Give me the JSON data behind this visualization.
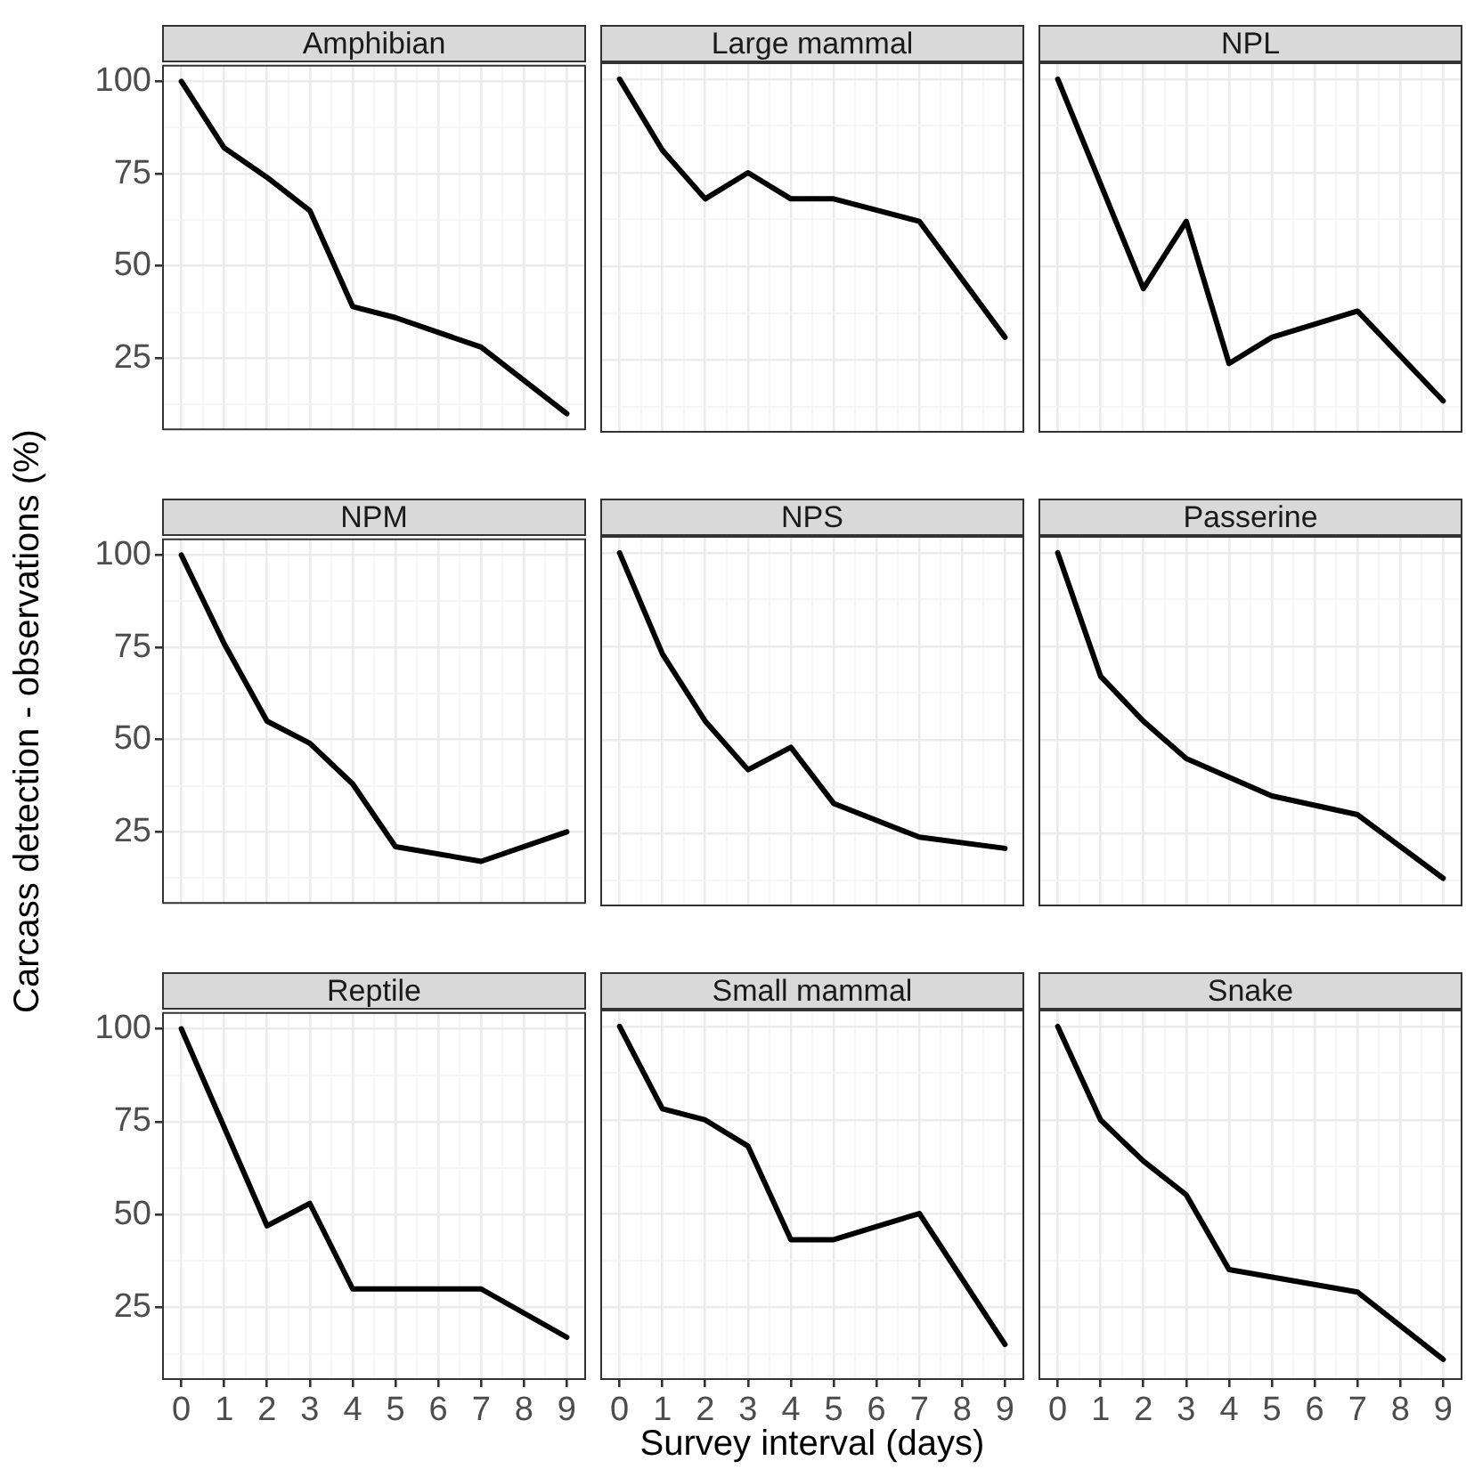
{
  "chart_data": [
    {
      "type": "line",
      "title": "Amphibian",
      "x": [
        0,
        1,
        2,
        3,
        4,
        5,
        7,
        9
      ],
      "series": [
        {
          "color": "#000000",
          "values": [
            100,
            82,
            74,
            65,
            39,
            36,
            28,
            10
          ]
        }
      ],
      "xlim": [
        -0.45,
        9.45
      ],
      "ylim": [
        5.5,
        104.5
      ],
      "xticks": [
        0,
        {
          "value": 0.5,
          "label": null
        },
        1,
        {
          "value": 1.5,
          "label": null
        },
        2,
        {
          "value": 2.5,
          "label": null
        },
        3,
        {
          "value": 3.5,
          "label": null
        },
        4,
        {
          "value": 4.5,
          "label": null
        },
        5,
        {
          "value": 5.5,
          "label": null
        },
        6,
        {
          "value": 6.5,
          "label": null
        },
        7,
        {
          "value": 7.5,
          "label": null
        },
        8,
        {
          "value": 8.5,
          "label": null
        },
        9
      ],
      "yticks": [
        {
          "value": 12.5,
          "label": null
        },
        25,
        {
          "value": 37.5,
          "label": null
        },
        50,
        {
          "value": 62.5,
          "label": null
        },
        75,
        {
          "value": 87.5,
          "label": null
        },
        100
      ],
      "grid": true,
      "legend": false,
      "tick_labels": "y"
    },
    {
      "type": "line",
      "title": "Large mammal",
      "x": [
        0,
        1,
        2,
        3,
        4,
        5,
        7,
        9
      ],
      "series": [
        {
          "color": "#000000",
          "values": [
            100,
            81,
            68,
            75,
            68,
            68,
            62,
            31
          ]
        }
      ],
      "xlim": [
        -0.45,
        9.45
      ],
      "ylim": [
        5.5,
        104.5
      ],
      "xticks": [
        0,
        {
          "value": 0.5,
          "label": null
        },
        1,
        {
          "value": 1.5,
          "label": null
        },
        2,
        {
          "value": 2.5,
          "label": null
        },
        3,
        {
          "value": 3.5,
          "label": null
        },
        4,
        {
          "value": 4.5,
          "label": null
        },
        5,
        {
          "value": 5.5,
          "label": null
        },
        6,
        {
          "value": 6.5,
          "label": null
        },
        7,
        {
          "value": 7.5,
          "label": null
        },
        8,
        {
          "value": 8.5,
          "label": null
        },
        9
      ],
      "yticks": [
        {
          "value": 12.5,
          "label": null
        },
        25,
        {
          "value": 37.5,
          "label": null
        },
        50,
        {
          "value": 62.5,
          "label": null
        },
        75,
        {
          "value": 87.5,
          "label": null
        },
        100
      ],
      "grid": true,
      "legend": false,
      "tick_labels": false
    },
    {
      "type": "line",
      "title": "NPL",
      "x": [
        0,
        2,
        3,
        4,
        5,
        7,
        9
      ],
      "series": [
        {
          "color": "#000000",
          "values": [
            100,
            44,
            62,
            24,
            31,
            38,
            14
          ]
        }
      ],
      "xlim": [
        -0.45,
        9.45
      ],
      "ylim": [
        5.5,
        104.5
      ],
      "xticks": [
        0,
        {
          "value": 0.5,
          "label": null
        },
        1,
        {
          "value": 1.5,
          "label": null
        },
        2,
        {
          "value": 2.5,
          "label": null
        },
        3,
        {
          "value": 3.5,
          "label": null
        },
        4,
        {
          "value": 4.5,
          "label": null
        },
        5,
        {
          "value": 5.5,
          "label": null
        },
        6,
        {
          "value": 6.5,
          "label": null
        },
        7,
        {
          "value": 7.5,
          "label": null
        },
        8,
        {
          "value": 8.5,
          "label": null
        },
        9
      ],
      "yticks": [
        {
          "value": 12.5,
          "label": null
        },
        25,
        {
          "value": 37.5,
          "label": null
        },
        50,
        {
          "value": 62.5,
          "label": null
        },
        75,
        {
          "value": 87.5,
          "label": null
        },
        100
      ],
      "grid": true,
      "legend": false,
      "tick_labels": false
    },
    {
      "type": "line",
      "title": "NPM",
      "ylabel": "Carcass detection - observations (%)",
      "x": [
        0,
        1,
        2,
        3,
        4,
        5,
        7,
        9
      ],
      "series": [
        {
          "color": "#000000",
          "values": [
            100,
            76,
            55,
            49,
            38,
            21,
            17,
            25
          ]
        }
      ],
      "xlim": [
        -0.45,
        9.45
      ],
      "ylim": [
        5.5,
        104.5
      ],
      "xticks": [
        0,
        {
          "value": 0.5,
          "label": null
        },
        1,
        {
          "value": 1.5,
          "label": null
        },
        2,
        {
          "value": 2.5,
          "label": null
        },
        3,
        {
          "value": 3.5,
          "label": null
        },
        4,
        {
          "value": 4.5,
          "label": null
        },
        5,
        {
          "value": 5.5,
          "label": null
        },
        6,
        {
          "value": 6.5,
          "label": null
        },
        7,
        {
          "value": 7.5,
          "label": null
        },
        8,
        {
          "value": 8.5,
          "label": null
        },
        9
      ],
      "yticks": [
        {
          "value": 12.5,
          "label": null
        },
        25,
        {
          "value": 37.5,
          "label": null
        },
        50,
        {
          "value": 62.5,
          "label": null
        },
        75,
        {
          "value": 87.5,
          "label": null
        },
        100
      ],
      "grid": true,
      "legend": false,
      "tick_labels": "y"
    },
    {
      "type": "line",
      "title": "NPS",
      "x": [
        0,
        1,
        2,
        3,
        4,
        5,
        7,
        9
      ],
      "series": [
        {
          "color": "#000000",
          "values": [
            100,
            73,
            55,
            42,
            48,
            33,
            24,
            21
          ]
        }
      ],
      "xlim": [
        -0.45,
        9.45
      ],
      "ylim": [
        5.5,
        104.5
      ],
      "xticks": [
        0,
        {
          "value": 0.5,
          "label": null
        },
        1,
        {
          "value": 1.5,
          "label": null
        },
        2,
        {
          "value": 2.5,
          "label": null
        },
        3,
        {
          "value": 3.5,
          "label": null
        },
        4,
        {
          "value": 4.5,
          "label": null
        },
        5,
        {
          "value": 5.5,
          "label": null
        },
        6,
        {
          "value": 6.5,
          "label": null
        },
        7,
        {
          "value": 7.5,
          "label": null
        },
        8,
        {
          "value": 8.5,
          "label": null
        },
        9
      ],
      "yticks": [
        {
          "value": 12.5,
          "label": null
        },
        25,
        {
          "value": 37.5,
          "label": null
        },
        50,
        {
          "value": 62.5,
          "label": null
        },
        75,
        {
          "value": 87.5,
          "label": null
        },
        100
      ],
      "grid": true,
      "legend": false,
      "tick_labels": false
    },
    {
      "type": "line",
      "title": "Passerine",
      "x": [
        0,
        1,
        2,
        3,
        5,
        7,
        9
      ],
      "series": [
        {
          "color": "#000000",
          "values": [
            100,
            67,
            55,
            45,
            35,
            30,
            13
          ]
        }
      ],
      "xlim": [
        -0.45,
        9.45
      ],
      "ylim": [
        5.5,
        104.5
      ],
      "xticks": [
        0,
        {
          "value": 0.5,
          "label": null
        },
        1,
        {
          "value": 1.5,
          "label": null
        },
        2,
        {
          "value": 2.5,
          "label": null
        },
        3,
        {
          "value": 3.5,
          "label": null
        },
        4,
        {
          "value": 4.5,
          "label": null
        },
        5,
        {
          "value": 5.5,
          "label": null
        },
        6,
        {
          "value": 6.5,
          "label": null
        },
        7,
        {
          "value": 7.5,
          "label": null
        },
        8,
        {
          "value": 8.5,
          "label": null
        },
        9
      ],
      "yticks": [
        {
          "value": 12.5,
          "label": null
        },
        25,
        {
          "value": 37.5,
          "label": null
        },
        50,
        {
          "value": 62.5,
          "label": null
        },
        75,
        {
          "value": 87.5,
          "label": null
        },
        100
      ],
      "grid": true,
      "legend": false,
      "tick_labels": false
    },
    {
      "type": "line",
      "title": "Reptile",
      "x": [
        0,
        2,
        3,
        4,
        5,
        7,
        9
      ],
      "series": [
        {
          "color": "#000000",
          "values": [
            100,
            47,
            53,
            30,
            30,
            30,
            17
          ]
        }
      ],
      "xlim": [
        -0.45,
        9.45
      ],
      "ylim": [
        5.5,
        104.5
      ],
      "xticks": [
        0,
        {
          "value": 0.5,
          "label": null
        },
        1,
        {
          "value": 1.5,
          "label": null
        },
        2,
        {
          "value": 2.5,
          "label": null
        },
        3,
        {
          "value": 3.5,
          "label": null
        },
        4,
        {
          "value": 4.5,
          "label": null
        },
        5,
        {
          "value": 5.5,
          "label": null
        },
        6,
        {
          "value": 6.5,
          "label": null
        },
        7,
        {
          "value": 7.5,
          "label": null
        },
        8,
        {
          "value": 8.5,
          "label": null
        },
        9
      ],
      "yticks": [
        {
          "value": 12.5,
          "label": null
        },
        25,
        {
          "value": 37.5,
          "label": null
        },
        50,
        {
          "value": 62.5,
          "label": null
        },
        75,
        {
          "value": 87.5,
          "label": null
        },
        100
      ],
      "grid": true,
      "legend": false
    },
    {
      "type": "line",
      "title": "Small mammal",
      "xlabel": "Survey interval (days)",
      "x": [
        0,
        1,
        2,
        3,
        4,
        5,
        7,
        9
      ],
      "series": [
        {
          "color": "#000000",
          "values": [
            100,
            78,
            75,
            68,
            43,
            43,
            50,
            15
          ]
        }
      ],
      "xlim": [
        -0.45,
        9.45
      ],
      "ylim": [
        5.5,
        104.5
      ],
      "xticks": [
        0,
        {
          "value": 0.5,
          "label": null
        },
        1,
        {
          "value": 1.5,
          "label": null
        },
        2,
        {
          "value": 2.5,
          "label": null
        },
        3,
        {
          "value": 3.5,
          "label": null
        },
        4,
        {
          "value": 4.5,
          "label": null
        },
        5,
        {
          "value": 5.5,
          "label": null
        },
        6,
        {
          "value": 6.5,
          "label": null
        },
        7,
        {
          "value": 7.5,
          "label": null
        },
        8,
        {
          "value": 8.5,
          "label": null
        },
        9
      ],
      "yticks": [
        {
          "value": 12.5,
          "label": null
        },
        25,
        {
          "value": 37.5,
          "label": null
        },
        50,
        {
          "value": 62.5,
          "label": null
        },
        75,
        {
          "value": 87.5,
          "label": null
        },
        100
      ],
      "grid": true,
      "legend": false,
      "tick_labels": "x"
    },
    {
      "type": "line",
      "title": "Snake",
      "x": [
        0,
        1,
        2,
        3,
        4,
        7,
        9
      ],
      "series": [
        {
          "color": "#000000",
          "values": [
            100,
            75,
            64,
            55,
            35,
            29,
            11
          ]
        }
      ],
      "xlim": [
        -0.45,
        9.45
      ],
      "ylim": [
        5.5,
        104.5
      ],
      "xticks": [
        0,
        {
          "value": 0.5,
          "label": null
        },
        1,
        {
          "value": 1.5,
          "label": null
        },
        2,
        {
          "value": 2.5,
          "label": null
        },
        3,
        {
          "value": 3.5,
          "label": null
        },
        4,
        {
          "value": 4.5,
          "label": null
        },
        5,
        {
          "value": 5.5,
          "label": null
        },
        6,
        {
          "value": 6.5,
          "label": null
        },
        7,
        {
          "value": 7.5,
          "label": null
        },
        8,
        {
          "value": 8.5,
          "label": null
        },
        9
      ],
      "yticks": [
        {
          "value": 12.5,
          "label": null
        },
        25,
        {
          "value": 37.5,
          "label": null
        },
        50,
        {
          "value": 62.5,
          "label": null
        },
        75,
        {
          "value": 87.5,
          "label": null
        },
        100
      ],
      "grid": true,
      "legend": false,
      "tick_labels": "x"
    }
  ]
}
